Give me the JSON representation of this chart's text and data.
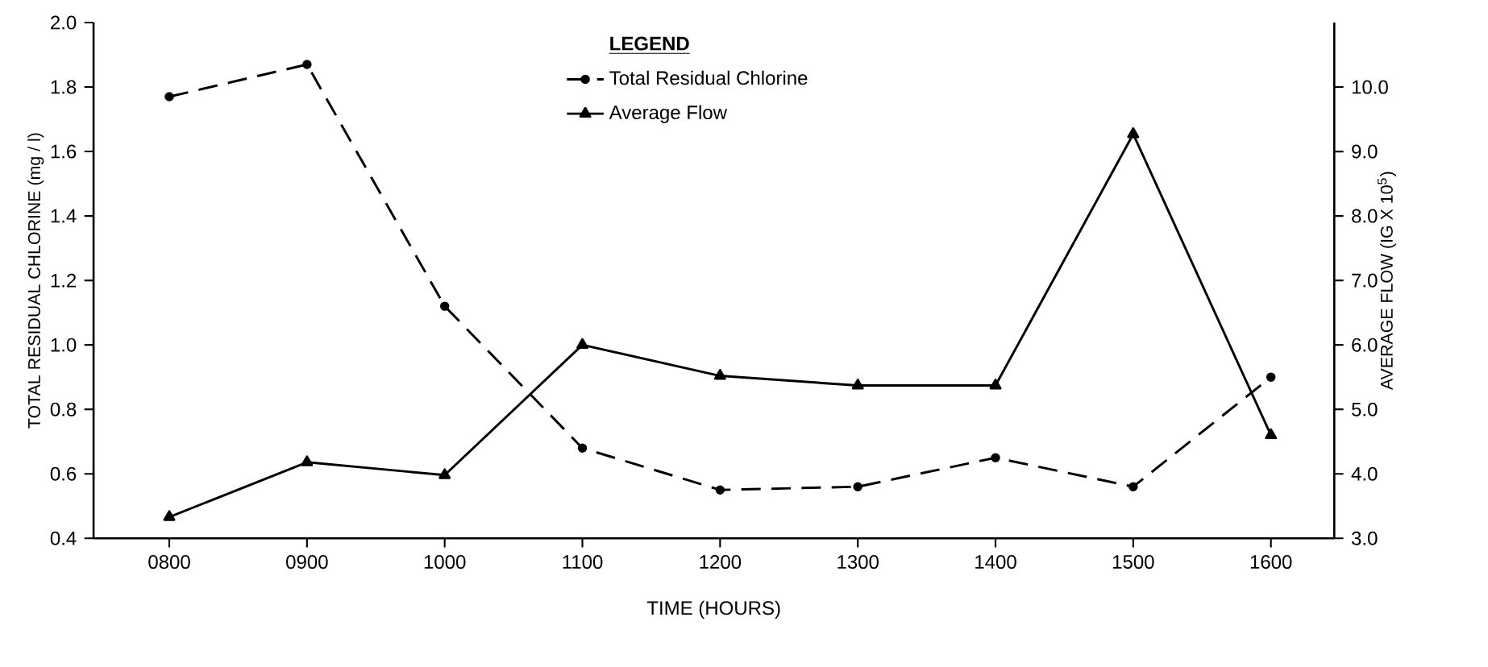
{
  "chart_data": {
    "type": "line",
    "xlabel": "TIME (HOURS)",
    "ylabel": "TOTAL RESIDUAL CHLORINE (mg / l)",
    "y2label": "AVERAGE FLOW (IG X 10$^{5}$)",
    "legend_title": "LEGEND",
    "categories": [
      "0800",
      "0900",
      "1000",
      "1100",
      "1200",
      "1300",
      "1400",
      "1500",
      "1600"
    ],
    "series": [
      {
        "name": "Total Residual Chlorine",
        "color": "#000000",
        "marker": "circle",
        "line_style": "dashed",
        "values": [
          1.77,
          1.87,
          1.12,
          0.68,
          0.55,
          0.56,
          0.65,
          0.56,
          0.9
        ]
      },
      {
        "name": "Average Flow",
        "color": "#000000",
        "marker": "triangle",
        "line_style": "solid",
        "axis": "y2",
        "values": [
          3.33,
          4.18,
          3.98,
          6.0,
          5.52,
          5.37,
          5.37,
          9.27,
          4.6
        ]
      }
    ],
    "ylim": [
      0.4,
      2.0
    ],
    "yticks": [
      {
        "value": 0.4,
        "label": "0.4"
      },
      {
        "value": 0.6,
        "label": "0.6"
      },
      {
        "value": 0.8,
        "label": "0.8"
      },
      {
        "value": 1.0,
        "label": "1.0"
      },
      {
        "value": 1.2,
        "label": "1.2"
      },
      {
        "value": 1.4,
        "label": "1.4"
      },
      {
        "value": 1.6,
        "label": "1.6"
      },
      {
        "value": 1.8,
        "label": "1.8"
      },
      {
        "value": 2.0,
        "label": "2.0"
      }
    ],
    "y2lim": [
      3.0,
      11.0
    ],
    "y2ticks": [
      {
        "value": 3.0,
        "label": "3.0"
      },
      {
        "value": 4.0,
        "label": "4.0"
      },
      {
        "value": 5.0,
        "label": "5.0"
      },
      {
        "value": 6.0,
        "label": "6.0"
      },
      {
        "value": 7.0,
        "label": "7.0"
      },
      {
        "value": 8.0,
        "label": "8.0"
      },
      {
        "value": 9.0,
        "label": "9.0"
      },
      {
        "value": 10.0,
        "label": "10.0"
      }
    ],
    "grid": false,
    "legend": "top"
  }
}
